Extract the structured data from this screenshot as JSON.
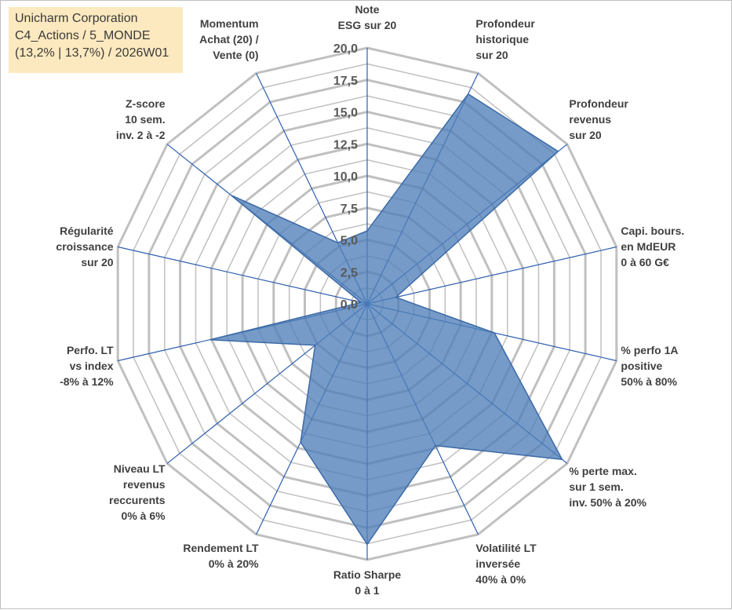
{
  "info_box": {
    "line1": "Unicharm Corporation",
    "line2": "C4_Actions / 5_MONDE",
    "line3": "(13,2% | 13,7%) / 2026W01"
  },
  "colors": {
    "fill": "#4f7fb8",
    "stroke": "#3b6aa6",
    "spoke": "#2e5fb0",
    "grid": "#c0c0c0",
    "info_bg": "#fde9bf"
  },
  "chart_data": {
    "type": "radar",
    "title": "",
    "range": [
      0,
      20
    ],
    "tick_step": 2.5,
    "tick_labels": [
      "0,0",
      "2,5",
      "5,0",
      "7,5",
      "10,0",
      "12,5",
      "15,0",
      "17,5",
      "20,0"
    ],
    "axes": [
      {
        "key": "note_esg",
        "lines": [
          "Note",
          "ESG sur 20"
        ]
      },
      {
        "key": "profondeur_historique",
        "lines": [
          "Profondeur",
          "historique",
          "sur 20"
        ]
      },
      {
        "key": "profondeur_revenus",
        "lines": [
          "Profondeur",
          "revenus",
          "sur 20"
        ]
      },
      {
        "key": "capi_bours",
        "lines": [
          "Capi. bours.",
          "en MdEUR",
          "0 à 60 G€"
        ]
      },
      {
        "key": "perfo_1a",
        "lines": [
          "% perfo 1A",
          "positive",
          "50% à 80%"
        ]
      },
      {
        "key": "perte_max",
        "lines": [
          "% perte max.",
          "sur 1 sem.",
          "inv. 50% à 20%"
        ]
      },
      {
        "key": "volatilite_lt",
        "lines": [
          "Volatilité LT",
          "inversée",
          "40% à 0%"
        ]
      },
      {
        "key": "ratio_sharpe",
        "lines": [
          "Ratio Sharpe",
          "0 à 1"
        ]
      },
      {
        "key": "rendement_lt",
        "lines": [
          "Rendement LT",
          "0% à 20%"
        ]
      },
      {
        "key": "niveau_lt_revenus",
        "lines": [
          "Niveau LT",
          "revenus",
          "reccurents",
          "0% à 6%"
        ]
      },
      {
        "key": "perfo_lt_index",
        "lines": [
          "Perfo. LT",
          "vs index",
          "-8% à 12%"
        ]
      },
      {
        "key": "regularite_croissance",
        "lines": [
          "Régularité",
          "croissance",
          "sur 20"
        ]
      },
      {
        "key": "z_score",
        "lines": [
          "Z-score",
          "10 sem.",
          "inv. 2 à -2"
        ]
      },
      {
        "key": "momentum",
        "lines": [
          "Momentum",
          "Achat (20) /",
          "Vente (0)"
        ]
      }
    ],
    "series": [
      {
        "name": "Unicharm Corporation",
        "values": [
          5.7,
          18.2,
          19.1,
          2.3,
          10.2,
          19.5,
          12.3,
          18.8,
          12.0,
          5.2,
          12.6,
          0.5,
          13.6,
          5.3
        ]
      }
    ]
  }
}
